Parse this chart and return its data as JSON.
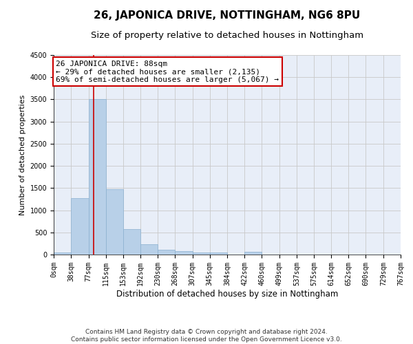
{
  "title": "26, JAPONICA DRIVE, NOTTINGHAM, NG6 8PU",
  "subtitle": "Size of property relative to detached houses in Nottingham",
  "xlabel": "Distribution of detached houses by size in Nottingham",
  "ylabel": "Number of detached properties",
  "bin_labels": [
    "0sqm",
    "38sqm",
    "77sqm",
    "115sqm",
    "153sqm",
    "192sqm",
    "230sqm",
    "268sqm",
    "307sqm",
    "345sqm",
    "384sqm",
    "422sqm",
    "460sqm",
    "499sqm",
    "537sqm",
    "575sqm",
    "614sqm",
    "652sqm",
    "690sqm",
    "729sqm",
    "767sqm"
  ],
  "bin_edges": [
    0,
    38,
    77,
    115,
    153,
    192,
    230,
    268,
    307,
    345,
    384,
    422,
    460,
    499,
    537,
    575,
    614,
    652,
    690,
    729,
    767
  ],
  "bar_heights": [
    40,
    1280,
    3500,
    1470,
    580,
    240,
    115,
    80,
    50,
    50,
    0,
    60,
    0,
    0,
    0,
    0,
    0,
    0,
    0,
    0
  ],
  "bar_color": "#b8d0e8",
  "bar_edge_color": "#8ab0d0",
  "grid_color": "#c8c8c8",
  "background_color": "#e8eef8",
  "property_size": 88,
  "red_line_color": "#cc0000",
  "annotation_line1": "26 JAPONICA DRIVE: 88sqm",
  "annotation_line2": "← 29% of detached houses are smaller (2,135)",
  "annotation_line3": "69% of semi-detached houses are larger (5,067) →",
  "annotation_box_color": "#ffffff",
  "annotation_border_color": "#cc0000",
  "ylim": [
    0,
    4500
  ],
  "yticks": [
    0,
    500,
    1000,
    1500,
    2000,
    2500,
    3000,
    3500,
    4000,
    4500
  ],
  "footer_line1": "Contains HM Land Registry data © Crown copyright and database right 2024.",
  "footer_line2": "Contains public sector information licensed under the Open Government Licence v3.0.",
  "title_fontsize": 11,
  "subtitle_fontsize": 9.5,
  "ylabel_fontsize": 8,
  "xlabel_fontsize": 8.5,
  "tick_fontsize": 7,
  "footer_fontsize": 6.5,
  "annotation_fontsize": 8
}
